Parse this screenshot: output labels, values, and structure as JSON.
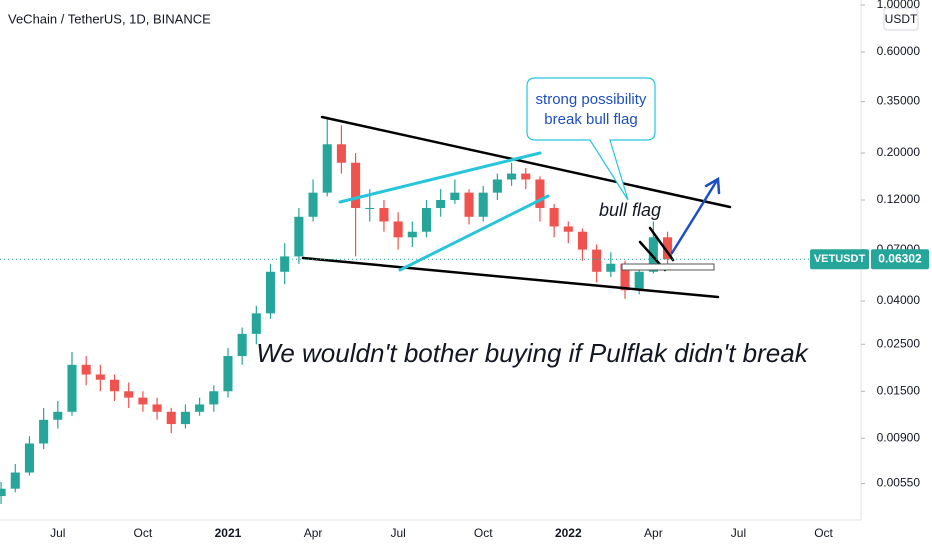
{
  "chart_data": {
    "type": "candlestick",
    "title": "VeChain / TetherUS, 1D, BINANCE",
    "currency": "USDT",
    "symbol": "VETUSDT",
    "last_price": 0.06302,
    "up_color": "#26a69a",
    "down_color": "#ef5350",
    "log_scale": true,
    "ylim": [
      0.0037,
      1.056
    ],
    "yticks": [
      {
        "value": 1.0,
        "label": "1.00000"
      },
      {
        "value": 0.6,
        "label": "0.60000"
      },
      {
        "value": 0.35,
        "label": "0.35000"
      },
      {
        "value": 0.2,
        "label": "0.20000"
      },
      {
        "value": 0.12,
        "label": "0.12000"
      },
      {
        "value": 0.07,
        "label": "0.07000"
      },
      {
        "value": 0.04,
        "label": "0.04000"
      },
      {
        "value": 0.025,
        "label": "0.02500"
      },
      {
        "value": 0.015,
        "label": "0.01500"
      },
      {
        "value": 0.009,
        "label": "0.00900"
      },
      {
        "value": 0.0055,
        "label": "0.00550"
      }
    ],
    "categories": [
      null,
      null,
      null,
      null,
      "Jul",
      null,
      null,
      null,
      null,
      null,
      "Oct",
      null,
      null,
      null,
      null,
      null,
      "2021",
      null,
      null,
      null,
      null,
      null,
      "Apr",
      null,
      null,
      null,
      null,
      null,
      "Jul",
      null,
      null,
      null,
      null,
      null,
      "Oct",
      null,
      null,
      null,
      null,
      null,
      "2022",
      null,
      null,
      null,
      null,
      null,
      "Apr",
      null,
      null,
      null,
      null,
      null,
      "Jul",
      null,
      null,
      null,
      null,
      null,
      "Oct"
    ],
    "open": [
      0.0048,
      0.0052,
      0.0062,
      0.0085,
      0.011,
      0.012,
      0.02,
      0.018,
      0.017,
      0.015,
      0.014,
      0.013,
      0.012,
      0.0105,
      0.012,
      0.013,
      0.015,
      0.022,
      0.028,
      0.035,
      0.055,
      0.065,
      0.1,
      0.13,
      0.22,
      0.18,
      0.11,
      0.11,
      0.095,
      0.08,
      0.085,
      0.11,
      0.12,
      0.13,
      0.1,
      0.13,
      0.15,
      0.16,
      0.15,
      0.11,
      0.09,
      0.085,
      0.07,
      0.055,
      0.06,
      0.045,
      0.055,
      0.08,
      null,
      null,
      null,
      null,
      null,
      null,
      null,
      null,
      null,
      null,
      null
    ],
    "high": [
      0.0056,
      0.0068,
      0.0092,
      0.0125,
      0.0135,
      0.023,
      0.022,
      0.02,
      0.018,
      0.0165,
      0.015,
      0.014,
      0.0125,
      0.013,
      0.014,
      0.016,
      0.024,
      0.03,
      0.038,
      0.06,
      0.075,
      0.11,
      0.15,
      0.29,
      0.27,
      0.2,
      0.135,
      0.12,
      0.105,
      0.095,
      0.12,
      0.135,
      0.15,
      0.135,
      0.14,
      0.16,
      0.18,
      0.17,
      0.155,
      0.115,
      0.095,
      0.088,
      0.074,
      0.068,
      0.062,
      0.058,
      0.095,
      0.085,
      null,
      null,
      null,
      null,
      null,
      null,
      null,
      null,
      null,
      null,
      null
    ],
    "low": [
      0.0044,
      0.005,
      0.006,
      0.008,
      0.01,
      0.0115,
      0.016,
      0.015,
      0.0135,
      0.0125,
      0.012,
      0.011,
      0.0095,
      0.01,
      0.0115,
      0.012,
      0.014,
      0.02,
      0.025,
      0.033,
      0.048,
      0.06,
      0.095,
      0.125,
      0.16,
      0.065,
      0.095,
      0.085,
      0.07,
      0.072,
      0.08,
      0.1,
      0.115,
      0.092,
      0.095,
      0.12,
      0.14,
      0.135,
      0.095,
      0.08,
      0.075,
      0.062,
      0.049,
      0.052,
      0.041,
      0.043,
      0.054,
      0.06,
      null,
      null,
      null,
      null,
      null,
      null,
      null,
      null,
      null,
      null,
      null
    ],
    "close": [
      0.0052,
      0.0062,
      0.0085,
      0.011,
      0.012,
      0.02,
      0.018,
      0.017,
      0.015,
      0.014,
      0.013,
      0.012,
      0.0105,
      0.012,
      0.013,
      0.015,
      0.022,
      0.028,
      0.035,
      0.055,
      0.065,
      0.1,
      0.13,
      0.22,
      0.18,
      0.11,
      0.11,
      0.095,
      0.08,
      0.085,
      0.11,
      0.12,
      0.13,
      0.1,
      0.13,
      0.15,
      0.16,
      0.15,
      0.11,
      0.09,
      0.085,
      0.07,
      0.055,
      0.06,
      0.045,
      0.055,
      0.08,
      0.063,
      null,
      null,
      null,
      null,
      null,
      null,
      null,
      null,
      null,
      null,
      null
    ],
    "annotations": {
      "callout": [
        "strong possibility",
        "break bull flag"
      ],
      "flag_label": "bull flag",
      "comment": "We wouldn't bother buying if Pulflak didn't break"
    }
  }
}
